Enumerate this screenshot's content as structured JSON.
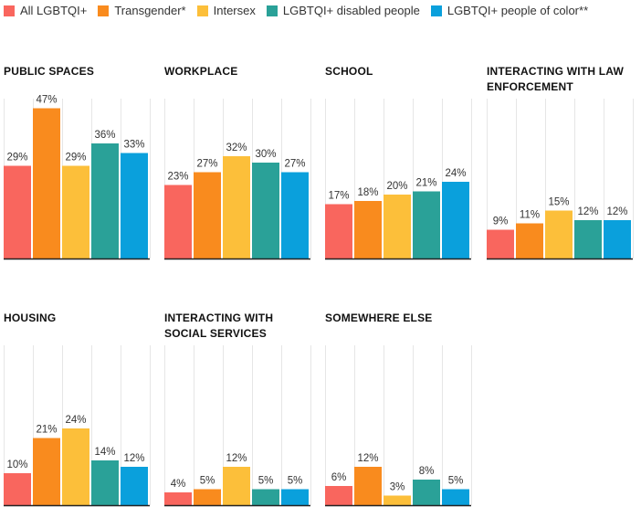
{
  "legend": [
    {
      "label": "All LGBTQI+",
      "color": "#f9665e"
    },
    {
      "label": "Transgender*",
      "color": "#f98b1e"
    },
    {
      "label": "Intersex",
      "color": "#fcbf3a"
    },
    {
      "label": "LGBTQI+ disabled people",
      "color": "#2aa198"
    },
    {
      "label": "LGBTQI+ people of color**",
      "color": "#0aa0dc"
    }
  ],
  "chart_data": [
    {
      "type": "bar",
      "title": "PUBLIC SPACES",
      "series_names": [
        "All LGBTQI+",
        "Transgender*",
        "Intersex",
        "LGBTQI+ disabled people",
        "LGBTQI+ people of color**"
      ],
      "values": [
        29,
        47,
        29,
        36,
        33
      ],
      "labels": [
        "29%",
        "47%",
        "29%",
        "36%",
        "33%"
      ],
      "ylim": [
        0,
        50
      ]
    },
    {
      "type": "bar",
      "title": "WORKPLACE",
      "series_names": [
        "All LGBTQI+",
        "Transgender*",
        "Intersex",
        "LGBTQI+ disabled people",
        "LGBTQI+ people of color**"
      ],
      "values": [
        23,
        27,
        32,
        30,
        27
      ],
      "labels": [
        "23%",
        "27%",
        "32%",
        "30%",
        "27%"
      ],
      "ylim": [
        0,
        50
      ]
    },
    {
      "type": "bar",
      "title": "SCHOOL",
      "series_names": [
        "All LGBTQI+",
        "Transgender*",
        "Intersex",
        "LGBTQI+ disabled people",
        "LGBTQI+ people of color**"
      ],
      "values": [
        17,
        18,
        20,
        21,
        24
      ],
      "labels": [
        "17%",
        "18%",
        "20%",
        "21%",
        "24%"
      ],
      "ylim": [
        0,
        50
      ]
    },
    {
      "type": "bar",
      "title": "INTERACTING WITH LAW ENFORCEMENT",
      "series_names": [
        "All LGBTQI+",
        "Transgender*",
        "Intersex",
        "LGBTQI+ disabled people",
        "LGBTQI+ people of color**"
      ],
      "values": [
        9,
        11,
        15,
        12,
        12
      ],
      "labels": [
        "9%",
        "11%",
        "15%",
        "12%",
        "12%"
      ],
      "ylim": [
        0,
        50
      ]
    },
    {
      "type": "bar",
      "title": "HOUSING",
      "series_names": [
        "All LGBTQI+",
        "Transgender*",
        "Intersex",
        "LGBTQI+ disabled people",
        "LGBTQI+ people of color**"
      ],
      "values": [
        10,
        21,
        24,
        14,
        12
      ],
      "labels": [
        "10%",
        "21%",
        "24%",
        "14%",
        "12%"
      ],
      "ylim": [
        0,
        50
      ]
    },
    {
      "type": "bar",
      "title": "INTERACTING WITH SOCIAL SERVICES",
      "series_names": [
        "All LGBTQI+",
        "Transgender*",
        "Intersex",
        "LGBTQI+ disabled people",
        "LGBTQI+ people of color**"
      ],
      "values": [
        4,
        5,
        12,
        5,
        5
      ],
      "labels": [
        "4%",
        "5%",
        "12%",
        "5%",
        "5%"
      ],
      "ylim": [
        0,
        50
      ]
    },
    {
      "type": "bar",
      "title": "SOMEWHERE ELSE",
      "series_names": [
        "All LGBTQI+",
        "Transgender*",
        "Intersex",
        "LGBTQI+ disabled people",
        "LGBTQI+ people of color**"
      ],
      "values": [
        6,
        12,
        3,
        8,
        5
      ],
      "labels": [
        "6%",
        "12%",
        "3%",
        "8%",
        "5%"
      ],
      "ylim": [
        0,
        50
      ]
    }
  ]
}
